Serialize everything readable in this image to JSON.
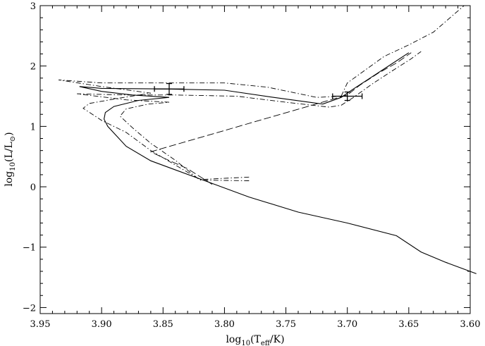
{
  "chart_data": {
    "type": "line",
    "title": "",
    "xlabel": {
      "prefix": "log",
      "sub": "10",
      "mid": "(T",
      "sub2": "eff",
      "suffix": "/K)"
    },
    "ylabel": {
      "prefix": "log",
      "sub": "10",
      "mid": "(L/L",
      "sub2": "⊙",
      "suffix": ")"
    },
    "xlim": [
      3.95,
      3.6
    ],
    "ylim": [
      -2.1,
      3.0
    ],
    "x_ticks": [
      3.95,
      3.9,
      3.85,
      3.8,
      3.75,
      3.7,
      3.65,
      3.6
    ],
    "x_tick_labels": [
      "3.95",
      "3.90",
      "3.85",
      "3.80",
      "3.75",
      "3.70",
      "3.65",
      "3.60"
    ],
    "y_ticks": [
      -2,
      -1,
      0,
      1,
      2,
      3
    ],
    "y_tick_labels": [
      "−2",
      "−1",
      "0",
      "1",
      "2",
      "3"
    ],
    "grid": false,
    "series": [
      {
        "style": "solid",
        "points": [
          [
            3.595,
            -1.44
          ],
          [
            3.62,
            -1.25
          ],
          [
            3.64,
            -1.08
          ],
          [
            3.66,
            -0.81
          ],
          [
            3.7,
            -0.6
          ],
          [
            3.74,
            -0.42
          ],
          [
            3.78,
            -0.17
          ],
          [
            3.82,
            0.13
          ],
          [
            3.86,
            0.43
          ],
          [
            3.88,
            0.67
          ],
          [
            3.895,
            1.0
          ],
          [
            3.898,
            1.12
          ],
          [
            3.897,
            1.23
          ],
          [
            3.89,
            1.33
          ],
          [
            3.87,
            1.43
          ],
          [
            3.845,
            1.48
          ],
          [
            3.875,
            1.52
          ],
          [
            3.9,
            1.58
          ],
          [
            3.918,
            1.66
          ],
          [
            3.9,
            1.63
          ],
          [
            3.85,
            1.62
          ],
          [
            3.8,
            1.6
          ],
          [
            3.76,
            1.48
          ],
          [
            3.72,
            1.37
          ],
          [
            3.705,
            1.48
          ],
          [
            3.695,
            1.62
          ],
          [
            3.68,
            1.82
          ],
          [
            3.665,
            2.02
          ],
          [
            3.65,
            2.22
          ]
        ]
      },
      {
        "style": "dashdot",
        "points": [
          [
            3.78,
            0.16
          ],
          [
            3.82,
            0.12
          ],
          [
            3.86,
            0.6
          ],
          [
            3.88,
            0.9
          ],
          [
            3.9,
            1.1
          ],
          [
            3.915,
            1.3
          ],
          [
            3.91,
            1.38
          ],
          [
            3.885,
            1.47
          ],
          [
            3.86,
            1.55
          ],
          [
            3.9,
            1.66
          ],
          [
            3.935,
            1.77
          ],
          [
            3.9,
            1.72
          ],
          [
            3.85,
            1.72
          ],
          [
            3.8,
            1.72
          ],
          [
            3.765,
            1.65
          ],
          [
            3.725,
            1.48
          ],
          [
            3.705,
            1.5
          ],
          [
            3.7,
            1.72
          ],
          [
            3.685,
            1.94
          ],
          [
            3.67,
            2.16
          ],
          [
            3.65,
            2.35
          ],
          [
            3.63,
            2.56
          ],
          [
            3.605,
            3.0
          ]
        ]
      },
      {
        "style": "dashdot",
        "points": [
          [
            3.78,
            0.1
          ],
          [
            3.82,
            0.11
          ],
          [
            3.84,
            0.44
          ],
          [
            3.86,
            0.72
          ],
          [
            3.875,
            0.98
          ],
          [
            3.885,
            1.17
          ],
          [
            3.88,
            1.29
          ],
          [
            3.862,
            1.37
          ],
          [
            3.845,
            1.4
          ],
          [
            3.88,
            1.44
          ],
          [
            3.92,
            1.54
          ],
          [
            3.88,
            1.52
          ],
          [
            3.84,
            1.52
          ],
          [
            3.79,
            1.5
          ],
          [
            3.75,
            1.4
          ],
          [
            3.715,
            1.32
          ],
          [
            3.705,
            1.35
          ],
          [
            3.695,
            1.48
          ],
          [
            3.68,
            1.7
          ],
          [
            3.665,
            1.9
          ],
          [
            3.648,
            2.12
          ],
          [
            3.64,
            2.24
          ]
        ]
      },
      {
        "style": "longdash",
        "points": [
          [
            3.81,
            0.04
          ],
          [
            3.83,
            0.3
          ],
          [
            3.85,
            0.48
          ],
          [
            3.86,
            0.58
          ],
          [
            3.7,
            1.52
          ],
          [
            3.69,
            1.68
          ],
          [
            3.675,
            1.88
          ],
          [
            3.66,
            2.05
          ],
          [
            3.648,
            2.22
          ]
        ]
      }
    ],
    "error_bars": [
      {
        "x": 3.845,
        "y": 1.62,
        "xerr": 0.012,
        "yerr": 0.09
      },
      {
        "x": 3.7,
        "y": 1.5,
        "xerr": 0.012,
        "yerr": 0.07
      }
    ]
  }
}
